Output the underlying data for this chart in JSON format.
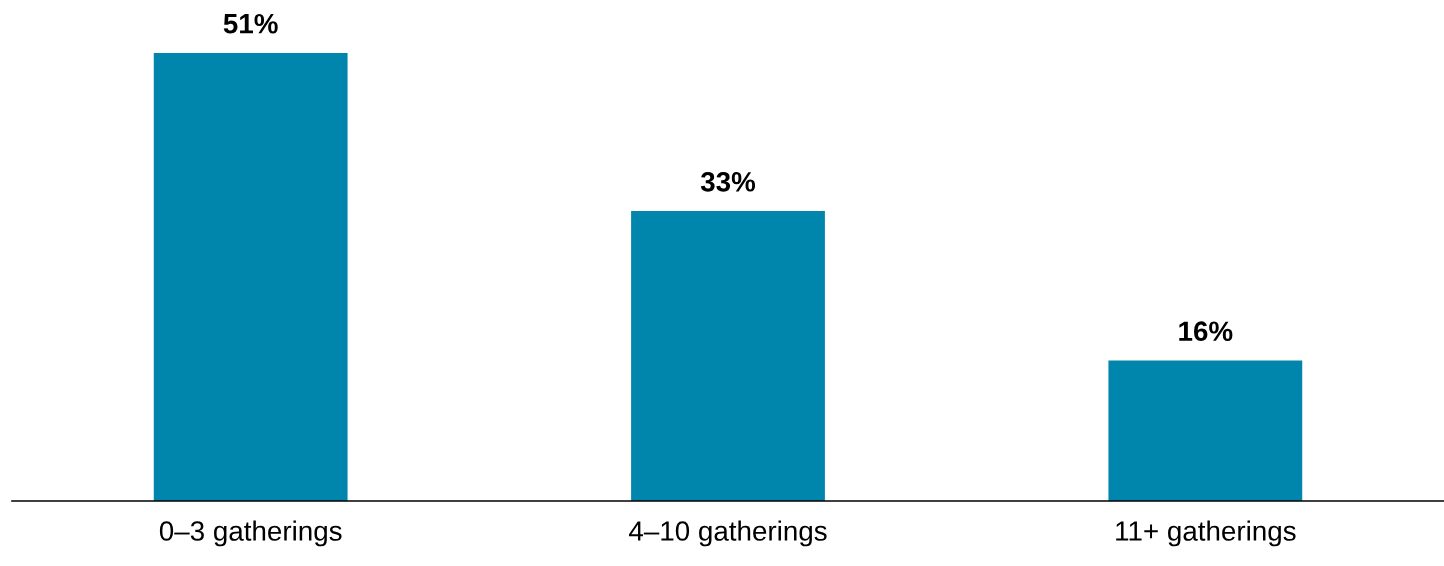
{
  "chart_data": {
    "type": "bar",
    "categories": [
      "0–3 gatherings",
      "4–10 gatherings",
      "11+ gatherings"
    ],
    "values": [
      51,
      33,
      16
    ],
    "value_labels": [
      "51%",
      "33%",
      "16%"
    ],
    "color": "#0085ad",
    "tick_labels": "x",
    "grid": false,
    "legend": false
  }
}
